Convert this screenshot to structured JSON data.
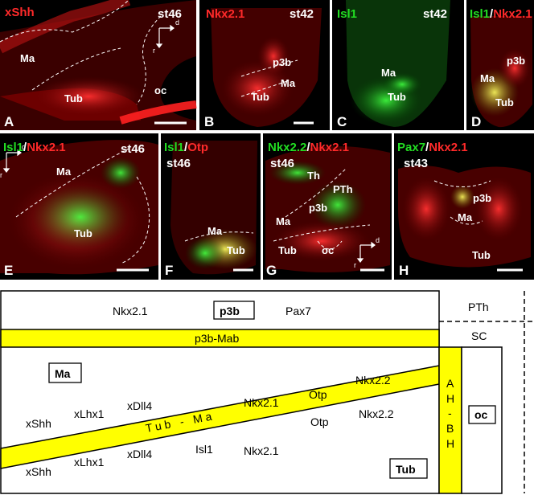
{
  "panels": [
    {
      "id": "A",
      "letter": "A",
      "stage": "st46",
      "title_parts": [
        {
          "text": "xShh",
          "color": "#ff2a2a"
        }
      ],
      "labels": [
        "Ma",
        "Tub",
        "oc"
      ],
      "axis": [
        "d",
        "r"
      ]
    },
    {
      "id": "B",
      "letter": "B",
      "stage": "st42",
      "title_parts": [
        {
          "text": "Nkx2.1",
          "color": "#ff2a2a"
        }
      ],
      "labels": [
        "p3b",
        "Ma",
        "Tub"
      ]
    },
    {
      "id": "C",
      "letter": "C",
      "stage": "st42",
      "title_parts": [
        {
          "text": "Isl1",
          "color": "#22dd22"
        }
      ],
      "labels": [
        "Ma",
        "Tub"
      ]
    },
    {
      "id": "D",
      "letter": "D",
      "stage": "",
      "title_parts": [
        {
          "text": "Isl1",
          "color": "#22dd22"
        },
        {
          "text": "/",
          "color": "#ffffff"
        },
        {
          "text": "Nkx2.1",
          "color": "#ff2a2a"
        }
      ],
      "labels": [
        "p3b",
        "Ma",
        "Tub"
      ]
    },
    {
      "id": "E",
      "letter": "E",
      "stage": "st46",
      "title_parts": [
        {
          "text": "Isl1",
          "color": "#22dd22"
        },
        {
          "text": "/",
          "color": "#ffffff"
        },
        {
          "text": "Nkx2.1",
          "color": "#ff2a2a"
        }
      ],
      "labels": [
        "Ma",
        "Tub"
      ],
      "axis": [
        "d",
        "r"
      ]
    },
    {
      "id": "F",
      "letter": "F",
      "stage": "st46",
      "title_parts": [
        {
          "text": "Isl1",
          "color": "#22dd22"
        },
        {
          "text": "/",
          "color": "#ffffff"
        },
        {
          "text": "Otp",
          "color": "#ff2a2a"
        }
      ],
      "labels": [
        "Ma",
        "Tub"
      ]
    },
    {
      "id": "G",
      "letter": "G",
      "stage": "st46",
      "title_parts": [
        {
          "text": "Nkx2.2",
          "color": "#22dd22"
        },
        {
          "text": "/",
          "color": "#ffffff"
        },
        {
          "text": "Nkx2.1",
          "color": "#ff2a2a"
        }
      ],
      "labels": [
        "Th",
        "PTh",
        "p3b",
        "Ma",
        "Tub",
        "oc"
      ],
      "axis": [
        "d",
        "r"
      ]
    },
    {
      "id": "H",
      "letter": "H",
      "stage": "st43",
      "title_parts": [
        {
          "text": "Pax7",
          "color": "#22dd22"
        },
        {
          "text": "/",
          "color": "#ffffff"
        },
        {
          "text": "Nkx2.1",
          "color": "#ff2a2a"
        }
      ],
      "labels": [
        "p3b",
        "Ma",
        "Tub"
      ]
    }
  ],
  "schematic": {
    "top_row": [
      "Nkx2.1",
      "p3b",
      "Pax7"
    ],
    "band_label": "p3b-Mab",
    "ma_box": "Ma",
    "upper_genes": [
      "Nkx2.1",
      "Otp",
      "Nkx2.2"
    ],
    "diagonal_label": "Tub - Ma",
    "left_upper": [
      "xShh",
      "xLhx1",
      "xDll4"
    ],
    "left_lower": [
      "xShh",
      "xLhx1",
      "xDll4",
      "Isl1"
    ],
    "lower_genes": [
      "Nkx2.1",
      "Otp",
      "Nkx2.2"
    ],
    "tub_box": "Tub",
    "vertical_band": [
      "A",
      "H",
      "-",
      "B",
      "H"
    ],
    "oc_box": "oc",
    "pth": "PTh",
    "sc": "SC"
  },
  "colors": {
    "red": "#ff2a2a",
    "green": "#22dd22",
    "yellow": "#ffff00",
    "panel_bg": "#000000"
  }
}
